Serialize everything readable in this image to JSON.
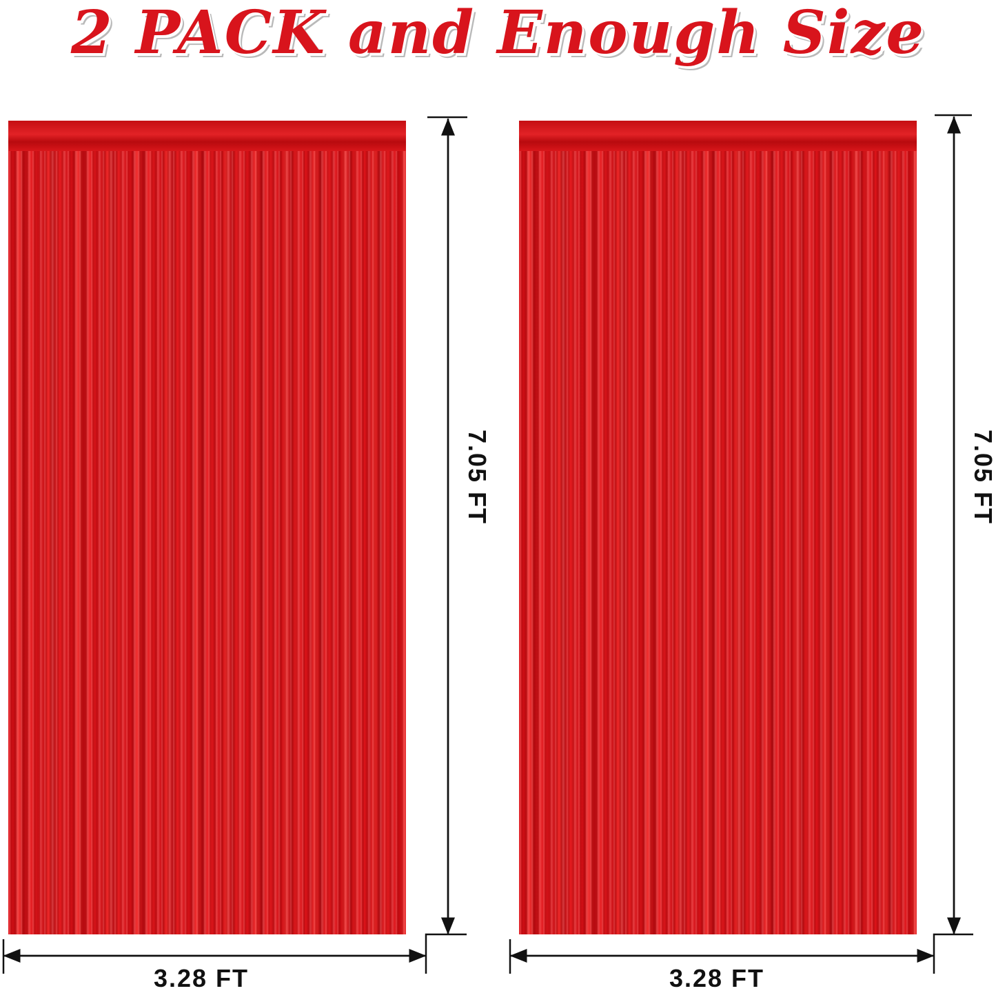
{
  "title": "2 PACK and Enough Size",
  "curtains": [
    {
      "height_label": "7.05 FT",
      "width_label": "3.28 FT"
    },
    {
      "height_label": "7.05 FT",
      "width_label": "3.28 FT"
    }
  ],
  "colors": {
    "title": "#d8141c",
    "curtain": "#d8141a",
    "lines": "#111111"
  }
}
